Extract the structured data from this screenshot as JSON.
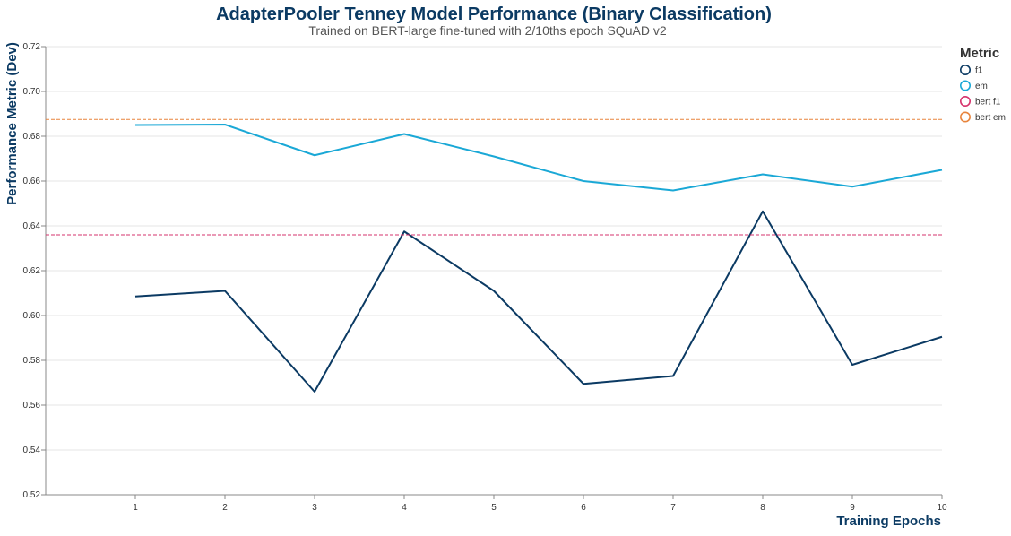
{
  "chart_data": {
    "type": "line",
    "title": "AdapterPooler Tenney Model Performance (Binary Classification)",
    "subtitle": "Trained on BERT-large fine-tuned with 2/10ths epoch SQuAD v2",
    "xlabel": "Training Epochs",
    "ylabel": "Performance Metric (Dev)",
    "x": [
      1,
      2,
      3,
      4,
      5,
      6,
      7,
      8,
      9,
      10
    ],
    "xlim": [
      0.0,
      10
    ],
    "ylim": [
      0.52,
      0.72
    ],
    "yticks": [
      "0.52",
      "0.54",
      "0.56",
      "0.58",
      "0.60",
      "0.62",
      "0.64",
      "0.66",
      "0.68",
      "0.70",
      "0.72"
    ],
    "xticks": [
      "1",
      "2",
      "3",
      "4",
      "5",
      "6",
      "7",
      "8",
      "9",
      "10"
    ],
    "grid": true,
    "legend": {
      "title": "Metric",
      "position": "right"
    },
    "series": [
      {
        "name": "f1",
        "color": "#0b3a63",
        "style": "solid",
        "values": [
          0.6085,
          0.611,
          0.566,
          0.6375,
          0.611,
          0.5695,
          0.573,
          0.6465,
          0.578,
          0.5905
        ]
      },
      {
        "name": "em",
        "color": "#1aa8d6",
        "style": "solid",
        "values": [
          0.685,
          0.6852,
          0.6715,
          0.681,
          0.671,
          0.66,
          0.6558,
          0.663,
          0.6575,
          0.665
        ]
      },
      {
        "name": "bert f1",
        "color": "#d6336c",
        "style": "dashed",
        "constant": 0.636
      },
      {
        "name": "bert em",
        "color": "#e8843c",
        "style": "dashed",
        "constant": 0.6875
      }
    ]
  }
}
